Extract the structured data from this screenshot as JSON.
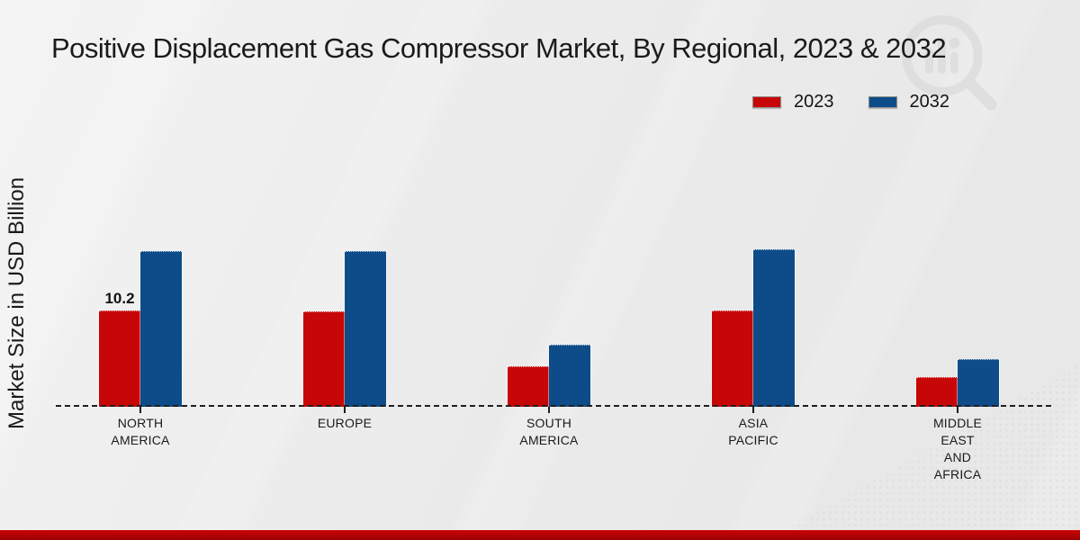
{
  "chart_data": {
    "type": "bar",
    "title": "Positive Displacement Gas Compressor Market, By Regional, 2023 & 2032",
    "xlabel": "",
    "ylabel": "Market Size in USD Billion",
    "categories": [
      "NORTH AMERICA",
      "EUROPE",
      "SOUTH AMERICA",
      "ASIA PACIFIC",
      "MIDDLE EAST AND AFRICA"
    ],
    "category_display_lines": [
      [
        "NORTH",
        "AMERICA"
      ],
      [
        "EUROPE"
      ],
      [
        "SOUTH",
        "AMERICA"
      ],
      [
        "ASIA",
        "PACIFIC"
      ],
      [
        "MIDDLE",
        "EAST",
        "AND",
        "AFRICA"
      ]
    ],
    "series": [
      {
        "name": "2023",
        "color": "#c70707",
        "values": [
          10.2,
          10.1,
          4.2,
          10.2,
          3.1
        ]
      },
      {
        "name": "2032",
        "color": "#0d4c89",
        "values": [
          16.6,
          16.6,
          6.5,
          16.7,
          5.0
        ]
      }
    ],
    "ylim": [
      0,
      20
    ],
    "grid": false,
    "axis_style": "dashed-baseline",
    "legend_position": "top-right",
    "data_labels": [
      {
        "series": "2023",
        "category": "NORTH AMERICA",
        "text": "10.2"
      }
    ]
  },
  "branding": {
    "watermark_icon": "magnifier-bar-chart-logo",
    "watermark_color": "#d6d6d6",
    "bottom_bar_color": "#b00303"
  },
  "colors": {
    "background": "#eaeaea",
    "text": "#1a1a1a",
    "axis": "#1f1f1f"
  }
}
